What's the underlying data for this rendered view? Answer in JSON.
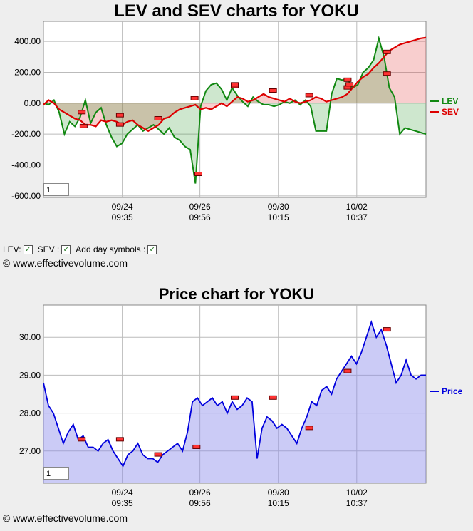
{
  "chart1": {
    "title": "LEV and SEV charts for YOKU",
    "chart_data": {
      "type": "line",
      "ylim": [
        -610,
        530
      ],
      "yticks": [
        "400.00",
        "200.00",
        "0.00",
        "-200.00",
        "-400.00",
        "-600.00"
      ],
      "xticks": [
        {
          "date": "09/24",
          "time": "09:35"
        },
        {
          "date": "09/26",
          "time": "09:56"
        },
        {
          "date": "09/30",
          "time": "10:15"
        },
        {
          "date": "10/02",
          "time": "10:37"
        }
      ],
      "series": [
        {
          "name": "LEV",
          "color": "#118811",
          "values": [
            0,
            -10,
            20,
            -60,
            -200,
            -120,
            -150,
            -90,
            20,
            -130,
            -60,
            -30,
            -140,
            -220,
            -280,
            -260,
            -200,
            -170,
            -140,
            -180,
            -160,
            -140,
            -170,
            -200,
            -160,
            -220,
            -240,
            -280,
            -300,
            -520,
            -20,
            80,
            120,
            130,
            90,
            20,
            100,
            50,
            10,
            -20,
            40,
            10,
            -10,
            -10,
            -20,
            -10,
            10,
            0,
            20,
            -10,
            20,
            -20,
            -180,
            -180,
            -180,
            60,
            160,
            150,
            160,
            100,
            120,
            200,
            230,
            280,
            420,
            300,
            100,
            40,
            -200,
            -160,
            -170,
            -180,
            -190,
            -200
          ]
        },
        {
          "name": "SEV",
          "color": "#dd0000",
          "values": [
            -10,
            20,
            0,
            -40,
            -60,
            -80,
            -100,
            -110,
            -140,
            -140,
            -150,
            -110,
            -120,
            -110,
            -120,
            -140,
            -120,
            -110,
            -140,
            -160,
            -180,
            -160,
            -140,
            -100,
            -90,
            -60,
            -40,
            -30,
            -20,
            -10,
            -40,
            -30,
            -40,
            -20,
            0,
            -20,
            10,
            40,
            30,
            10,
            20,
            40,
            60,
            40,
            30,
            20,
            10,
            30,
            10,
            0,
            10,
            20,
            40,
            30,
            10,
            20,
            30,
            40,
            60,
            100,
            140,
            170,
            190,
            230,
            260,
            300,
            340,
            360,
            380,
            390,
            400,
            410,
            420,
            425
          ]
        }
      ]
    },
    "markers": [
      "-60",
      "-80",
      "-140",
      "-100",
      "30",
      "-150",
      "-460",
      "110",
      "120",
      "80",
      "50",
      "100",
      "120",
      "150",
      "330",
      "190"
    ],
    "zoom_value": "1"
  },
  "controls": {
    "lev_label": "LEV:",
    "sev_label": "SEV :",
    "day_label": "Add day symbols :",
    "checked": "✓"
  },
  "copyright1": "© www.effectivevolume.com",
  "chart2": {
    "title": "Price chart for YOKU",
    "chart_data": {
      "type": "area",
      "ylim": [
        26.15,
        30.85
      ],
      "yticks": [
        "30.00",
        "29.00",
        "28.00",
        "27.00"
      ],
      "xticks": [
        {
          "date": "09/24",
          "time": "09:35"
        },
        {
          "date": "09/26",
          "time": "09:56"
        },
        {
          "date": "09/30",
          "time": "10:15"
        },
        {
          "date": "10/02",
          "time": "10:37"
        }
      ],
      "series": [
        {
          "name": "Price",
          "color": "#0000dd",
          "values": [
            28.8,
            28.2,
            28.0,
            27.6,
            27.2,
            27.5,
            27.7,
            27.3,
            27.4,
            27.1,
            27.1,
            27.0,
            27.2,
            27.3,
            27.0,
            26.8,
            26.6,
            26.9,
            27.0,
            27.2,
            26.9,
            26.8,
            26.8,
            26.7,
            26.9,
            27.0,
            27.1,
            27.2,
            27.0,
            27.5,
            28.3,
            28.4,
            28.2,
            28.3,
            28.4,
            28.2,
            28.3,
            28.0,
            28.3,
            28.1,
            28.2,
            28.4,
            28.3,
            26.8,
            27.6,
            27.9,
            27.8,
            27.6,
            27.7,
            27.6,
            27.4,
            27.2,
            27.6,
            27.9,
            28.3,
            28.2,
            28.6,
            28.7,
            28.5,
            28.9,
            29.1,
            29.3,
            29.5,
            29.3,
            29.6,
            30.0,
            30.4,
            30.0,
            30.2,
            29.8,
            29.3,
            28.8,
            29.0,
            29.4,
            29.0,
            28.9,
            29.0,
            29.0
          ]
        }
      ]
    },
    "markers": [
      "27.3",
      "27.3",
      "26.9",
      "27.1",
      "28.4",
      "28.4",
      "27.6",
      "29.1",
      "30.2"
    ],
    "zoom_value": "1"
  },
  "copyright2": "© www.effectivevolume.com"
}
